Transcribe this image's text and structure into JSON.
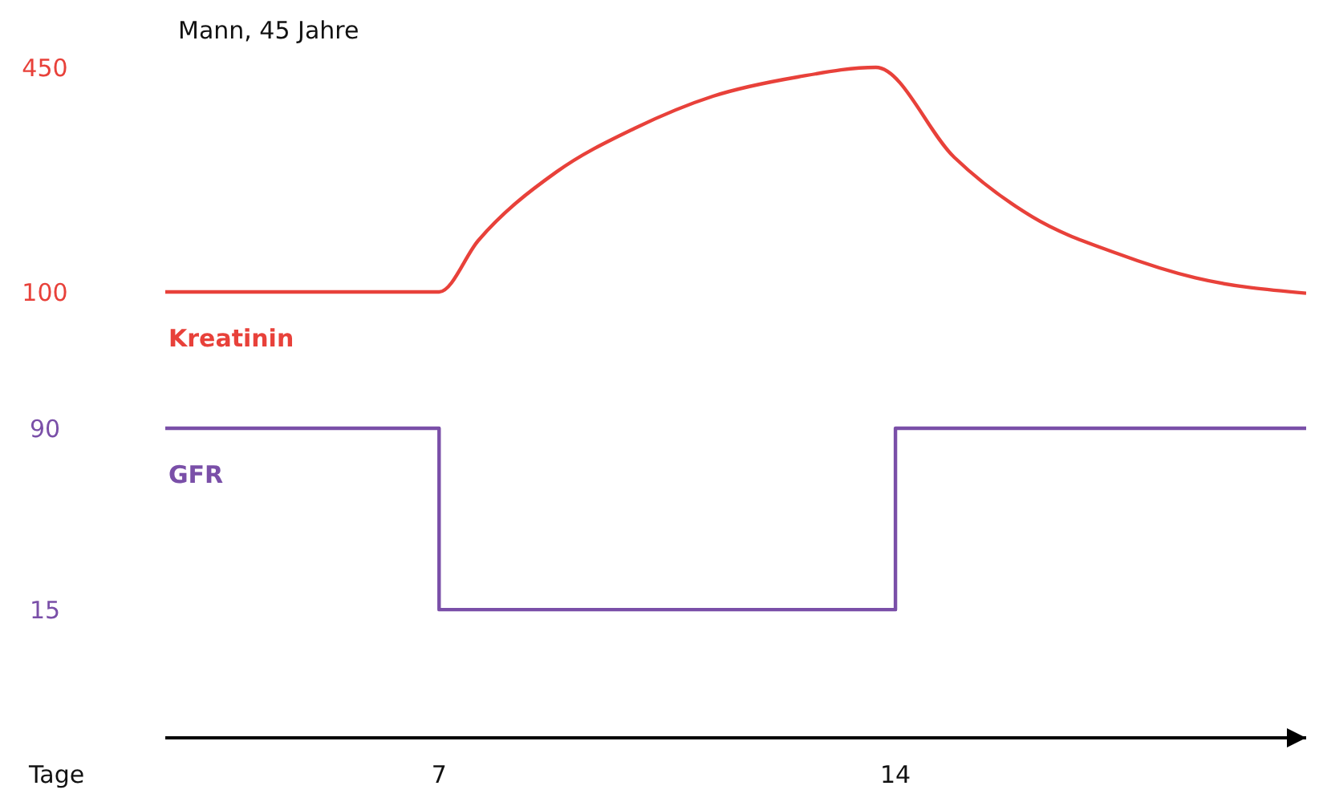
{
  "chart_data": {
    "type": "line",
    "title": "Mann, 45 Jahre",
    "xlabel": "Tage",
    "xlim": [
      2.8,
      20.3
    ],
    "xticks": [
      7,
      14
    ],
    "ylim": [
      -595,
      450
    ],
    "yticks": [
      100,
      450
    ],
    "y2lim": [
      -38,
      90
    ],
    "y2ticks": [
      15,
      90
    ],
    "grid": false,
    "legend": false,
    "marker": "none",
    "line_style": "solid",
    "series": [
      {
        "name": "Kreatinin",
        "type": "line",
        "color": "#e8413a",
        "x": [
          2.8,
          7,
          7.6,
          8.8,
          10,
          11.2,
          12.5,
          13.7,
          14.9,
          16.1,
          17.4,
          18.6,
          20.3
        ],
        "values": [
          100,
          100,
          180,
          287,
          355,
          405,
          435,
          450,
          310,
          217,
          160,
          122,
          98
        ]
      },
      {
        "name": "GFR",
        "type": "step",
        "axis": "y2",
        "color": "#7a4fa8",
        "x": [
          2.8,
          7,
          14,
          20.3
        ],
        "values": [
          90,
          15,
          90,
          90
        ]
      }
    ]
  }
}
